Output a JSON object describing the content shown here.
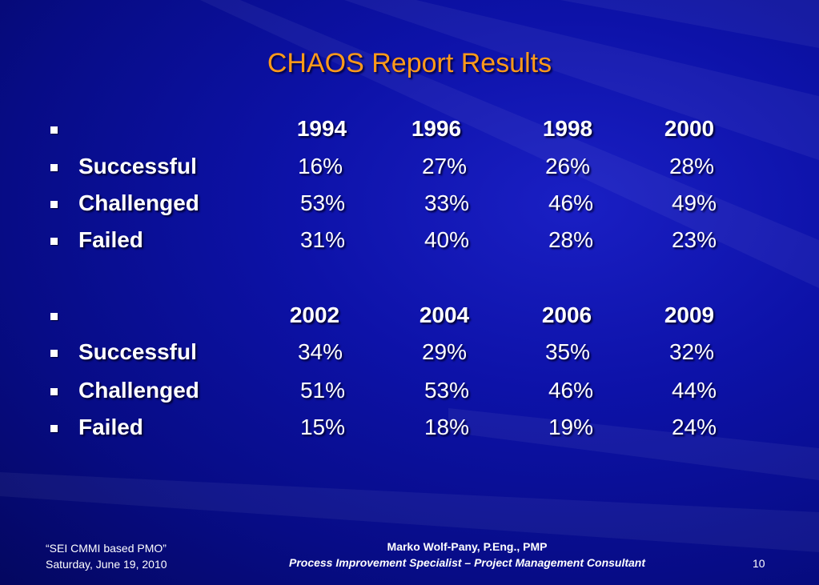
{
  "title": "CHAOS Report Results",
  "table1": {
    "years": [
      "1994",
      "1996",
      "1998",
      "2000"
    ],
    "rows": [
      {
        "label": "Successful",
        "values": [
          "16%",
          "27%",
          "26%",
          "28%"
        ]
      },
      {
        "label": "Challenged",
        "values": [
          "53%",
          "33%",
          "46%",
          "49%"
        ]
      },
      {
        "label": "Failed",
        "values": [
          "31%",
          "40%",
          "28%",
          "23%"
        ]
      }
    ]
  },
  "table2": {
    "years": [
      "2002",
      "2004",
      "2006",
      "2009"
    ],
    "rows": [
      {
        "label": "Successful",
        "values": [
          "34%",
          "29%",
          "35%",
          "32%"
        ]
      },
      {
        "label": "Challenged",
        "values": [
          "51%",
          "53%",
          "46%",
          "44%"
        ]
      },
      {
        "label": "Failed",
        "values": [
          "15%",
          "18%",
          "19%",
          "24%"
        ]
      }
    ]
  },
  "footer": {
    "left_line1": "“SEI CMMI based PMO”",
    "left_line2": "Saturday, June 19, 2010",
    "center_line1": "Marko Wolf-Pany, P.Eng., PMP",
    "center_line2": "Process Improvement Specialist – Project Management Consultant",
    "page_number": "10"
  }
}
